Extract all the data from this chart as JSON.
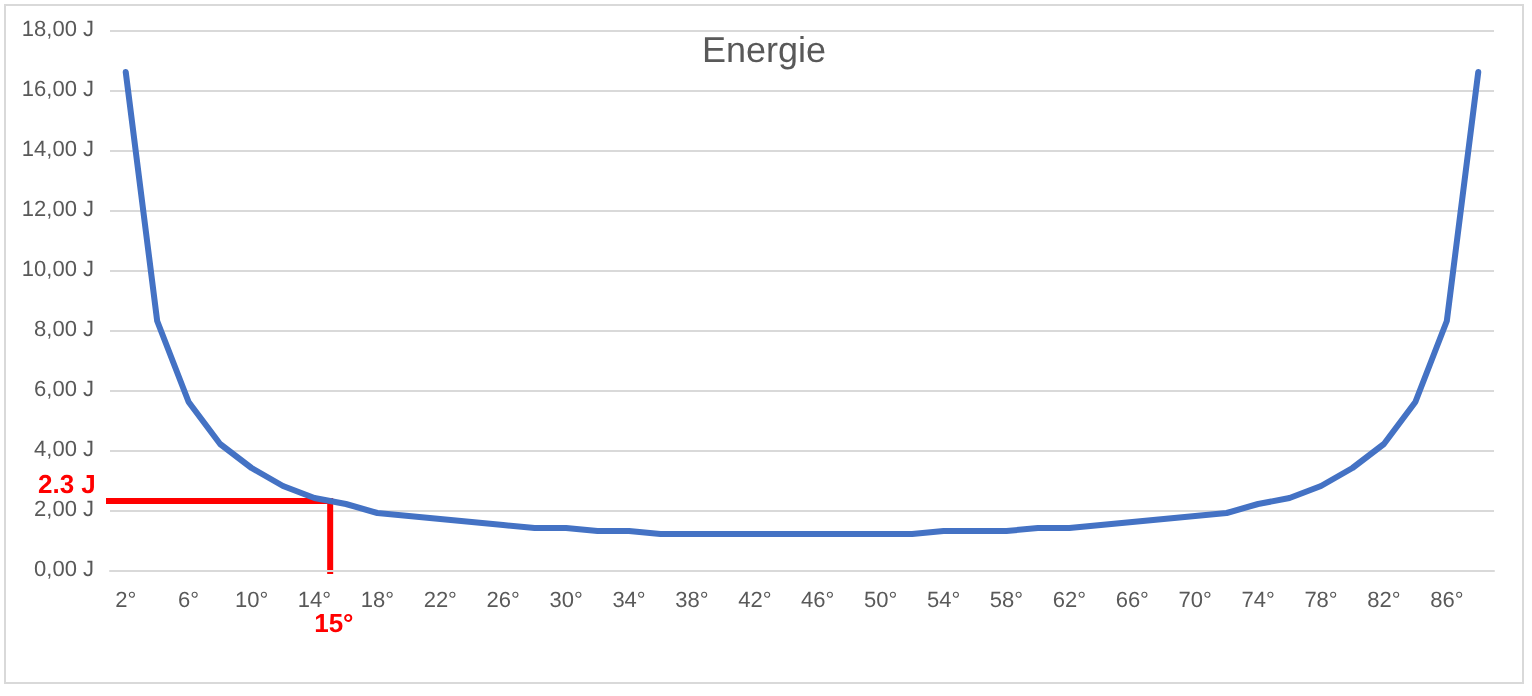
{
  "chart_data": {
    "type": "line",
    "title": "Energie",
    "categories": [
      "2°",
      null,
      "6°",
      null,
      "10°",
      null,
      "14°",
      null,
      "18°",
      null,
      "22°",
      null,
      "26°",
      null,
      "30°",
      null,
      "34°",
      null,
      "38°",
      null,
      "42°",
      null,
      "46°",
      null,
      "50°",
      null,
      "54°",
      null,
      "58°",
      null,
      "62°",
      null,
      "66°",
      null,
      "70°",
      null,
      "74°",
      null,
      "78°",
      null,
      "82°",
      null,
      "86°",
      null
    ],
    "series": [
      {
        "color": "#4472c4",
        "values": [
          16.6,
          8.3,
          5.6,
          4.2,
          3.4,
          2.8,
          2.4,
          2.2,
          1.9,
          1.8,
          1.7,
          1.6,
          1.5,
          1.4,
          1.4,
          1.3,
          1.3,
          1.2,
          1.2,
          1.2,
          1.2,
          1.2,
          1.2,
          1.2,
          1.2,
          1.2,
          1.3,
          1.3,
          1.3,
          1.4,
          1.4,
          1.5,
          1.6,
          1.7,
          1.8,
          1.9,
          2.2,
          2.4,
          2.8,
          3.4,
          4.2,
          5.6,
          8.3,
          16.6
        ]
      }
    ],
    "ylim": [
      0,
      18
    ],
    "yticks": [
      {
        "value": 0,
        "label": "0,00 J"
      },
      {
        "value": 2,
        "label": "2,00 J"
      },
      {
        "value": 4,
        "label": "4,00 J"
      },
      {
        "value": 6,
        "label": "6,00 J"
      },
      {
        "value": 8,
        "label": "8,00 J"
      },
      {
        "value": 10,
        "label": "10,00 J"
      },
      {
        "value": 12,
        "label": "12,00 J"
      },
      {
        "value": 14,
        "label": "14,00 J"
      },
      {
        "value": 16,
        "label": "16,00 J"
      },
      {
        "value": 18,
        "label": "18,00 J"
      }
    ],
    "annotations": [
      "2.3 J",
      "15°"
    ],
    "grid": "y",
    "marker": "none",
    "line_style": "solid"
  }
}
